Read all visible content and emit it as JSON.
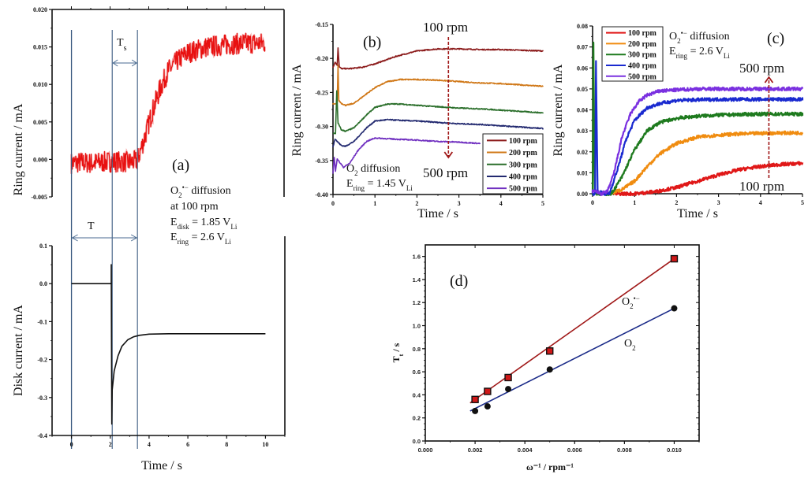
{
  "chart_data": [
    {
      "id": "a-top",
      "type": "line",
      "panel_label": "(a)",
      "title": "",
      "xlabel": "",
      "ylabel": "Ring current / mA",
      "xlim": [
        -1,
        11
      ],
      "ylim": [
        -0.005,
        0.02
      ],
      "yticks": [
        "0.020",
        "0.015",
        "0.010",
        "0.005",
        "0.000",
        "-0.005"
      ],
      "ytick_values": [
        0.02,
        0.015,
        0.01,
        0.005,
        0.0,
        -0.005
      ],
      "series": [
        {
          "name": "Ring current",
          "color": "#e81010",
          "x": [
            0,
            0.5,
            1,
            1.5,
            2,
            2.5,
            3,
            3.4,
            3.8,
            4.2,
            4.6,
            5,
            5.5,
            6,
            7,
            8,
            9,
            10
          ],
          "y": [
            -0.0005,
            -0.0004,
            -0.0005,
            -0.0004,
            -0.0003,
            -0.0003,
            -0.0004,
            -0.0002,
            0.003,
            0.0065,
            0.0095,
            0.0118,
            0.0132,
            0.0142,
            0.015,
            0.0153,
            0.0155,
            0.0155
          ]
        }
      ],
      "annotations": {
        "Ts_label": "T",
        "Ts_sub": "s",
        "T_label": "T",
        "lines_x": [
          0,
          2.1,
          3.4
        ],
        "text_lines": [
          {
            "main": "O",
            "sub": "2",
            "sup": "•−",
            "rest": " diffusion"
          },
          {
            "main": "at 100 rpm"
          },
          {
            "main": "E",
            "sub": "disk",
            "rest": " = 1.85 V",
            "sub2": "Li"
          },
          {
            "main": "E",
            "sub": "ring",
            "rest": " = 2.6 V",
            "sub2": "Li"
          }
        ]
      }
    },
    {
      "id": "a-bottom",
      "type": "line",
      "title": "",
      "xlabel": "Time / s",
      "ylabel": "Disk current / mA",
      "xlim": [
        -1,
        11
      ],
      "ylim": [
        -0.4,
        0.1
      ],
      "xticks": [
        "0",
        "2",
        "4",
        "6",
        "8",
        "10"
      ],
      "xtick_values": [
        0,
        2,
        4,
        6,
        8,
        10
      ],
      "yticks": [
        "0.1",
        "0.0",
        "-0.1",
        "-0.2",
        "-0.3",
        "-0.4"
      ],
      "ytick_values": [
        0.1,
        0.0,
        -0.1,
        -0.2,
        -0.3,
        -0.4
      ],
      "series": [
        {
          "name": "Disk current",
          "color": "#111111",
          "x": [
            0,
            2.05,
            2.05,
            2.08,
            2.1,
            2.2,
            2.4,
            2.6,
            2.9,
            3.2,
            3.5,
            4,
            5,
            6,
            8,
            10
          ],
          "y": [
            0.0,
            0.0,
            0.05,
            -0.37,
            -0.28,
            -0.23,
            -0.19,
            -0.165,
            -0.148,
            -0.14,
            -0.136,
            -0.133,
            -0.132,
            -0.132,
            -0.132,
            -0.132
          ]
        }
      ]
    },
    {
      "id": "b",
      "type": "line",
      "panel_label": "(b)",
      "xlabel": "Time / s",
      "ylabel": "Ring current / mA",
      "xlim": [
        0,
        5
      ],
      "ylim": [
        -0.4,
        -0.15
      ],
      "xticks": [
        "0",
        "1",
        "2",
        "3",
        "4",
        "5"
      ],
      "xtick_values": [
        0,
        1,
        2,
        3,
        4,
        5
      ],
      "yticks": [
        "-0.15",
        "-0.20",
        "-0.25",
        "-0.30",
        "-0.35",
        "-0.40"
      ],
      "ytick_values": [
        -0.15,
        -0.2,
        -0.25,
        -0.3,
        -0.35,
        -0.4
      ],
      "legend": "bottom-right",
      "arrow": {
        "from_label": "100 rpm",
        "to_label": "500 rpm",
        "direction": "down",
        "x": 2.75
      },
      "annotation": {
        "line1_main": "O",
        "line1_sub": "2",
        "line1_rest": " diffusion",
        "line2_main": "E",
        "line2_sub": "ring",
        "line2_rest": " = 1.45 V",
        "line2_sub2": "Li"
      },
      "series": [
        {
          "name": "100 rpm",
          "color": "#8b1a1a",
          "x": [
            0,
            0.05,
            0.1,
            0.12,
            0.15,
            0.2,
            0.4,
            0.7,
            1.0,
            1.5,
            2.0,
            2.5,
            3.0,
            3.5,
            4.0,
            4.5,
            5.0
          ],
          "y": [
            -0.214,
            -0.205,
            -0.21,
            -0.185,
            -0.212,
            -0.215,
            -0.215,
            -0.213,
            -0.208,
            -0.197,
            -0.189,
            -0.186,
            -0.186,
            -0.187,
            -0.187,
            -0.188,
            -0.189
          ]
        },
        {
          "name": "200 rpm",
          "color": "#d07818",
          "x": [
            0,
            0.1,
            0.12,
            0.14,
            0.2,
            0.3,
            0.5,
            0.8,
            1.0,
            1.3,
            1.6,
            2.0,
            2.5,
            3.0,
            3.5,
            4.0,
            4.5,
            5.0
          ],
          "y": [
            -0.267,
            -0.267,
            -0.21,
            -0.262,
            -0.266,
            -0.269,
            -0.266,
            -0.252,
            -0.243,
            -0.234,
            -0.231,
            -0.231,
            -0.232,
            -0.234,
            -0.236,
            -0.237,
            -0.239,
            -0.241
          ]
        },
        {
          "name": "300 rpm",
          "color": "#2a6e2a",
          "x": [
            0,
            0.06,
            0.09,
            0.12,
            0.2,
            0.3,
            0.5,
            0.8,
            1.0,
            1.3,
            1.6,
            2.0,
            2.5,
            3.0,
            3.5,
            4.0,
            4.5,
            5.0
          ],
          "y": [
            -0.31,
            -0.31,
            -0.248,
            -0.295,
            -0.305,
            -0.307,
            -0.302,
            -0.283,
            -0.272,
            -0.267,
            -0.267,
            -0.269,
            -0.271,
            -0.273,
            -0.274,
            -0.276,
            -0.278,
            -0.28
          ]
        },
        {
          "name": "400 rpm",
          "color": "#232a70",
          "x": [
            0,
            0.05,
            0.1,
            0.2,
            0.3,
            0.5,
            0.8,
            1.0,
            1.3,
            1.6,
            2.0,
            2.5,
            3.0,
            3.5,
            4.0,
            4.5,
            5.0
          ],
          "y": [
            -0.33,
            -0.318,
            -0.322,
            -0.328,
            -0.329,
            -0.322,
            -0.302,
            -0.292,
            -0.29,
            -0.291,
            -0.292,
            -0.294,
            -0.296,
            -0.297,
            -0.299,
            -0.301,
            -0.303
          ]
        },
        {
          "name": "500 rpm",
          "color": "#7030c0",
          "x": [
            0,
            0.03,
            0.06,
            0.1,
            0.15,
            0.25,
            0.4,
            0.6,
            0.8,
            1.0,
            1.3,
            1.6,
            2.0,
            2.5,
            3.0,
            3.5
          ],
          "y": [
            -0.368,
            -0.345,
            -0.366,
            -0.347,
            -0.352,
            -0.36,
            -0.354,
            -0.335,
            -0.322,
            -0.317,
            -0.318,
            -0.319,
            -0.32,
            -0.322,
            -0.323,
            -0.325
          ]
        }
      ]
    },
    {
      "id": "c",
      "type": "line",
      "panel_label": "(c)",
      "xlabel": "Time / s",
      "ylabel": "Ring current / mA",
      "xlim": [
        0,
        5
      ],
      "ylim": [
        0.0,
        0.08
      ],
      "xticks": [
        "0",
        "1",
        "2",
        "3",
        "4",
        "5"
      ],
      "xtick_values": [
        0,
        1,
        2,
        3,
        4,
        5
      ],
      "yticks": [
        "0.08",
        "0.07",
        "0.06",
        "0.05",
        "0.04",
        "0.03",
        "0.02",
        "0.01",
        "0.00"
      ],
      "ytick_values": [
        0.08,
        0.07,
        0.06,
        0.05,
        0.04,
        0.03,
        0.02,
        0.01,
        0.0
      ],
      "legend": "top-left",
      "arrow": {
        "from_label": "100 rpm",
        "to_label": "500 rpm",
        "direction": "up",
        "x": 4.2
      },
      "annotation": {
        "line1_main": "O",
        "line1_sub": "2",
        "line1_sup": "•−",
        "line1_rest": " diffusion",
        "line2_main": "E",
        "line2_sub": "ring",
        "line2_rest": " =  2.6 V",
        "line2_sub2": "Li"
      },
      "series": [
        {
          "name": "100 rpm",
          "color": "#e01818",
          "x": [
            0.5,
            1.0,
            1.5,
            2.0,
            2.5,
            3.0,
            3.5,
            4.0,
            4.5,
            5.0
          ],
          "y": [
            0.0,
            0.0,
            0.001,
            0.003,
            0.006,
            0.009,
            0.0115,
            0.013,
            0.014,
            0.0145
          ]
        },
        {
          "name": "200 rpm",
          "color": "#f08c10",
          "x": [
            0.4,
            0.7,
            1.0,
            1.3,
            1.6,
            2.0,
            2.5,
            3.0,
            3.5,
            4.0,
            4.5,
            5.0
          ],
          "y": [
            0.0,
            0.002,
            0.006,
            0.013,
            0.019,
            0.024,
            0.027,
            0.028,
            0.0285,
            0.0288,
            0.029,
            0.029
          ]
        },
        {
          "name": "300 rpm",
          "color": "#1e7a1e",
          "x": [
            0,
            0.02,
            0.05,
            0.1,
            0.3,
            0.45,
            0.7,
            1.0,
            1.3,
            1.6,
            2.0,
            2.5,
            3.0,
            3.5,
            4.0,
            4.5,
            5.0
          ],
          "y": [
            0.0,
            0.072,
            0.002,
            0.0,
            0.0,
            0.0,
            0.008,
            0.021,
            0.03,
            0.034,
            0.036,
            0.037,
            0.0375,
            0.0378,
            0.038,
            0.038,
            0.038
          ]
        },
        {
          "name": "400 rpm",
          "color": "#1a2ad0",
          "x": [
            0,
            0.06,
            0.08,
            0.12,
            0.3,
            0.4,
            0.6,
            0.8,
            1.0,
            1.3,
            1.6,
            2.0,
            2.5,
            3.0,
            3.5,
            4.0,
            4.5,
            5.0
          ],
          "y": [
            0.0,
            0.0,
            0.063,
            0.001,
            0.0,
            0.0,
            0.012,
            0.026,
            0.035,
            0.041,
            0.043,
            0.0445,
            0.0448,
            0.045,
            0.045,
            0.045,
            0.045,
            0.045
          ]
        },
        {
          "name": "500 rpm",
          "color": "#7a30e0",
          "x": [
            0,
            0.1,
            0.2,
            0.35,
            0.5,
            0.7,
            0.9,
            1.1,
            1.3,
            1.6,
            2.0,
            2.5,
            3.0,
            3.5,
            4.0,
            4.5,
            5.0
          ],
          "y": [
            0.001,
            0.001,
            0.0,
            0.001,
            0.009,
            0.027,
            0.038,
            0.044,
            0.047,
            0.049,
            0.0495,
            0.05,
            0.05,
            0.05,
            0.05,
            0.05,
            0.05
          ]
        }
      ]
    },
    {
      "id": "d",
      "type": "scatter",
      "panel_label": "(d)",
      "xlabel": "ω⁻¹ / rpm⁻¹",
      "ylabel": "T",
      "ylabel_sub": "t",
      "ylabel_rest": " / s",
      "xlim": [
        0.0,
        0.011
      ],
      "ylim": [
        0.0,
        1.7
      ],
      "xticks": [
        "0.000",
        "0.002",
        "0.004",
        "0.006",
        "0.008",
        "0.010"
      ],
      "xtick_values": [
        0.0,
        0.002,
        0.004,
        0.006,
        0.008,
        0.01
      ],
      "yticks": [
        "0.0",
        "0.2",
        "0.4",
        "0.6",
        "0.8",
        "1.0",
        "1.2",
        "1.4",
        "1.6"
      ],
      "ytick_values": [
        0.0,
        0.2,
        0.4,
        0.6,
        0.8,
        1.0,
        1.2,
        1.4,
        1.6
      ],
      "series": [
        {
          "name": "O2•−",
          "label_main": "O",
          "label_sub": "2",
          "label_sup": "•−",
          "marker": "square",
          "color": "#a01818",
          "x": [
            0.002,
            0.0025,
            0.00333,
            0.005,
            0.01
          ],
          "y": [
            0.36,
            0.43,
            0.55,
            0.78,
            1.58
          ],
          "fit": {
            "x": [
              0.0018,
              0.01
            ],
            "y": [
              0.33,
              1.58
            ]
          }
        },
        {
          "name": "O2",
          "label_main": "O",
          "label_sub": "2",
          "marker": "circle",
          "color": "#1a2a88",
          "x": [
            0.002,
            0.0025,
            0.00333,
            0.005,
            0.01
          ],
          "y": [
            0.26,
            0.3,
            0.45,
            0.62,
            1.15
          ],
          "fit": {
            "x": [
              0.0018,
              0.01
            ],
            "y": [
              0.26,
              1.15
            ]
          }
        }
      ]
    }
  ]
}
